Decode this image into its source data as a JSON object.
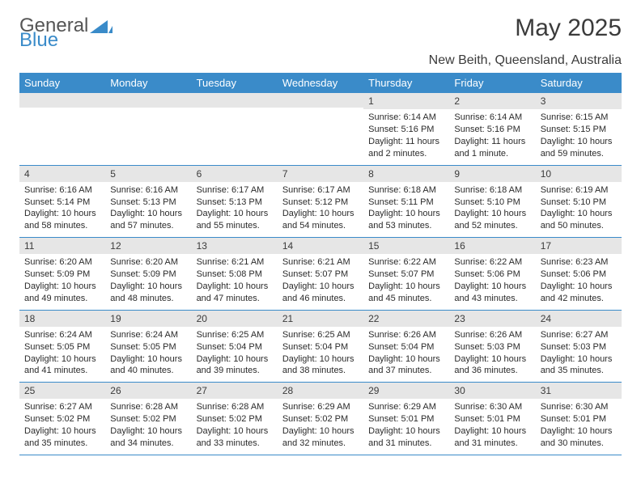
{
  "logo": {
    "text1": "General",
    "text2": "Blue"
  },
  "title": "May 2025",
  "location": "New Beith, Queensland, Australia",
  "colors": {
    "header_bg": "#3a8bc9",
    "header_fg": "#ffffff",
    "daynum_bg": "#e6e6e6",
    "row_border": "#3a8bc9",
    "text": "#2b2b2b"
  },
  "day_headers": [
    "Sunday",
    "Monday",
    "Tuesday",
    "Wednesday",
    "Thursday",
    "Friday",
    "Saturday"
  ],
  "weeks": [
    [
      {
        "n": "",
        "sr": "",
        "ss": "",
        "dl": ""
      },
      {
        "n": "",
        "sr": "",
        "ss": "",
        "dl": ""
      },
      {
        "n": "",
        "sr": "",
        "ss": "",
        "dl": ""
      },
      {
        "n": "",
        "sr": "",
        "ss": "",
        "dl": ""
      },
      {
        "n": "1",
        "sr": "Sunrise: 6:14 AM",
        "ss": "Sunset: 5:16 PM",
        "dl": "Daylight: 11 hours and 2 minutes."
      },
      {
        "n": "2",
        "sr": "Sunrise: 6:14 AM",
        "ss": "Sunset: 5:16 PM",
        "dl": "Daylight: 11 hours and 1 minute."
      },
      {
        "n": "3",
        "sr": "Sunrise: 6:15 AM",
        "ss": "Sunset: 5:15 PM",
        "dl": "Daylight: 10 hours and 59 minutes."
      }
    ],
    [
      {
        "n": "4",
        "sr": "Sunrise: 6:16 AM",
        "ss": "Sunset: 5:14 PM",
        "dl": "Daylight: 10 hours and 58 minutes."
      },
      {
        "n": "5",
        "sr": "Sunrise: 6:16 AM",
        "ss": "Sunset: 5:13 PM",
        "dl": "Daylight: 10 hours and 57 minutes."
      },
      {
        "n": "6",
        "sr": "Sunrise: 6:17 AM",
        "ss": "Sunset: 5:13 PM",
        "dl": "Daylight: 10 hours and 55 minutes."
      },
      {
        "n": "7",
        "sr": "Sunrise: 6:17 AM",
        "ss": "Sunset: 5:12 PM",
        "dl": "Daylight: 10 hours and 54 minutes."
      },
      {
        "n": "8",
        "sr": "Sunrise: 6:18 AM",
        "ss": "Sunset: 5:11 PM",
        "dl": "Daylight: 10 hours and 53 minutes."
      },
      {
        "n": "9",
        "sr": "Sunrise: 6:18 AM",
        "ss": "Sunset: 5:10 PM",
        "dl": "Daylight: 10 hours and 52 minutes."
      },
      {
        "n": "10",
        "sr": "Sunrise: 6:19 AM",
        "ss": "Sunset: 5:10 PM",
        "dl": "Daylight: 10 hours and 50 minutes."
      }
    ],
    [
      {
        "n": "11",
        "sr": "Sunrise: 6:20 AM",
        "ss": "Sunset: 5:09 PM",
        "dl": "Daylight: 10 hours and 49 minutes."
      },
      {
        "n": "12",
        "sr": "Sunrise: 6:20 AM",
        "ss": "Sunset: 5:09 PM",
        "dl": "Daylight: 10 hours and 48 minutes."
      },
      {
        "n": "13",
        "sr": "Sunrise: 6:21 AM",
        "ss": "Sunset: 5:08 PM",
        "dl": "Daylight: 10 hours and 47 minutes."
      },
      {
        "n": "14",
        "sr": "Sunrise: 6:21 AM",
        "ss": "Sunset: 5:07 PM",
        "dl": "Daylight: 10 hours and 46 minutes."
      },
      {
        "n": "15",
        "sr": "Sunrise: 6:22 AM",
        "ss": "Sunset: 5:07 PM",
        "dl": "Daylight: 10 hours and 45 minutes."
      },
      {
        "n": "16",
        "sr": "Sunrise: 6:22 AM",
        "ss": "Sunset: 5:06 PM",
        "dl": "Daylight: 10 hours and 43 minutes."
      },
      {
        "n": "17",
        "sr": "Sunrise: 6:23 AM",
        "ss": "Sunset: 5:06 PM",
        "dl": "Daylight: 10 hours and 42 minutes."
      }
    ],
    [
      {
        "n": "18",
        "sr": "Sunrise: 6:24 AM",
        "ss": "Sunset: 5:05 PM",
        "dl": "Daylight: 10 hours and 41 minutes."
      },
      {
        "n": "19",
        "sr": "Sunrise: 6:24 AM",
        "ss": "Sunset: 5:05 PM",
        "dl": "Daylight: 10 hours and 40 minutes."
      },
      {
        "n": "20",
        "sr": "Sunrise: 6:25 AM",
        "ss": "Sunset: 5:04 PM",
        "dl": "Daylight: 10 hours and 39 minutes."
      },
      {
        "n": "21",
        "sr": "Sunrise: 6:25 AM",
        "ss": "Sunset: 5:04 PM",
        "dl": "Daylight: 10 hours and 38 minutes."
      },
      {
        "n": "22",
        "sr": "Sunrise: 6:26 AM",
        "ss": "Sunset: 5:04 PM",
        "dl": "Daylight: 10 hours and 37 minutes."
      },
      {
        "n": "23",
        "sr": "Sunrise: 6:26 AM",
        "ss": "Sunset: 5:03 PM",
        "dl": "Daylight: 10 hours and 36 minutes."
      },
      {
        "n": "24",
        "sr": "Sunrise: 6:27 AM",
        "ss": "Sunset: 5:03 PM",
        "dl": "Daylight: 10 hours and 35 minutes."
      }
    ],
    [
      {
        "n": "25",
        "sr": "Sunrise: 6:27 AM",
        "ss": "Sunset: 5:02 PM",
        "dl": "Daylight: 10 hours and 35 minutes."
      },
      {
        "n": "26",
        "sr": "Sunrise: 6:28 AM",
        "ss": "Sunset: 5:02 PM",
        "dl": "Daylight: 10 hours and 34 minutes."
      },
      {
        "n": "27",
        "sr": "Sunrise: 6:28 AM",
        "ss": "Sunset: 5:02 PM",
        "dl": "Daylight: 10 hours and 33 minutes."
      },
      {
        "n": "28",
        "sr": "Sunrise: 6:29 AM",
        "ss": "Sunset: 5:02 PM",
        "dl": "Daylight: 10 hours and 32 minutes."
      },
      {
        "n": "29",
        "sr": "Sunrise: 6:29 AM",
        "ss": "Sunset: 5:01 PM",
        "dl": "Daylight: 10 hours and 31 minutes."
      },
      {
        "n": "30",
        "sr": "Sunrise: 6:30 AM",
        "ss": "Sunset: 5:01 PM",
        "dl": "Daylight: 10 hours and 31 minutes."
      },
      {
        "n": "31",
        "sr": "Sunrise: 6:30 AM",
        "ss": "Sunset: 5:01 PM",
        "dl": "Daylight: 10 hours and 30 minutes."
      }
    ]
  ]
}
